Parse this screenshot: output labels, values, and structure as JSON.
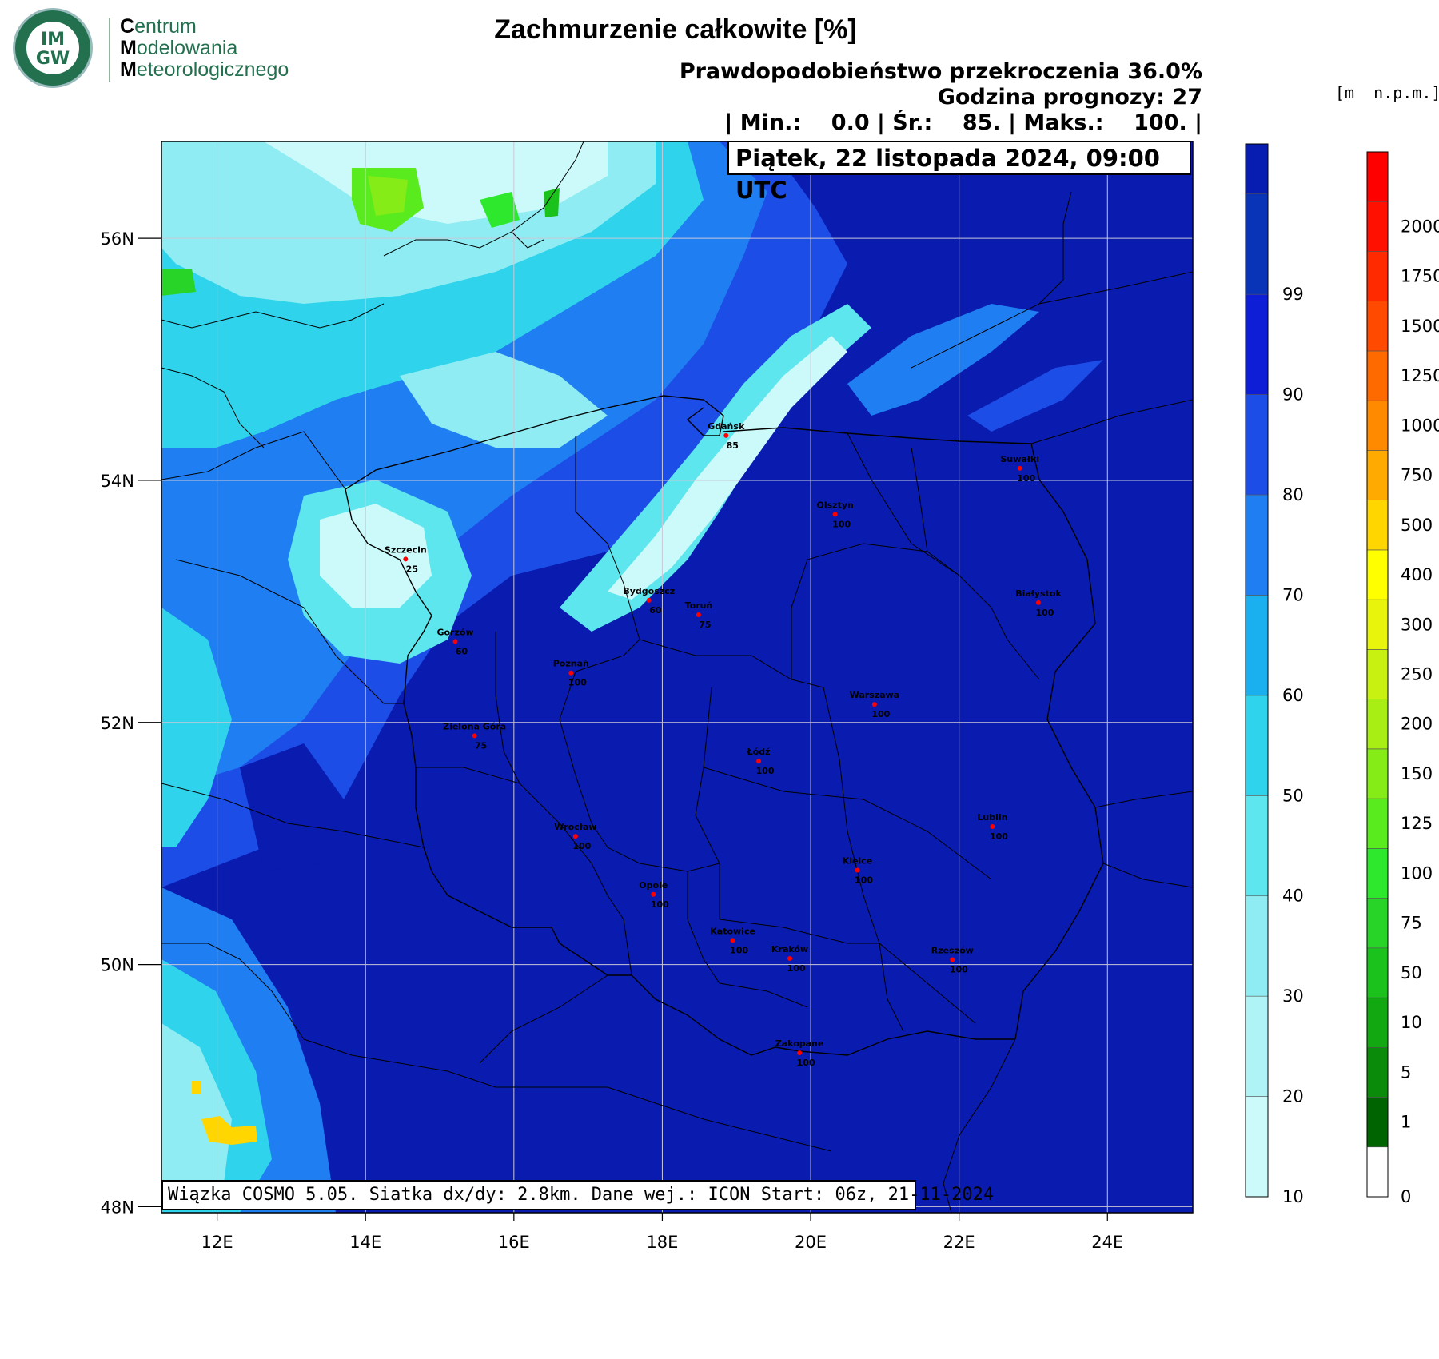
{
  "logo": {
    "circle_top": "IM",
    "circle_bottom": "GW",
    "line1_initial": "C",
    "line1_rest": "entrum",
    "line2_initial": "M",
    "line2_rest": "odelowania",
    "line3_initial": "M",
    "line3_rest": "eteorologicznego"
  },
  "header": {
    "title": "Zachmurzenie całkowite [%]",
    "probability": "Prawdopodobieństwo przekroczenia 36.0%",
    "forecast_hour": "Godzina prognozy: 27",
    "stats": "| Min.:    0.0 | Śr.:    85. | Maks.:    100. |"
  },
  "date_label": "Piątek, 22 listopada 2024, 09:00 UTC",
  "footer_note": "Wiązka COSMO 5.05. Siatka dx/dy: 2.8km. Dane wej.: ICON Start: 06z, 21-11-2024",
  "elevation_unit": "[m  n.p.m.]",
  "map": {
    "lon_labels": [
      "12E",
      "14E",
      "16E",
      "18E",
      "20E",
      "22E",
      "24E"
    ],
    "lon_values": [
      12,
      14,
      16,
      18,
      20,
      22,
      24
    ],
    "lat_labels": [
      "56N",
      "54N",
      "52N",
      "50N",
      "48N"
    ],
    "lat_values": [
      56,
      54,
      52,
      50,
      48
    ],
    "lon_range": [
      11.25,
      25.15
    ],
    "lat_range": [
      47.95,
      56.8
    ],
    "cities": [
      {
        "name": "Gdańsk",
        "value": "85",
        "lon": 18.86,
        "lat": 54.37
      },
      {
        "name": "Suwałki",
        "value": "100",
        "lon": 22.82,
        "lat": 54.1
      },
      {
        "name": "Olsztyn",
        "value": "100",
        "lon": 20.33,
        "lat": 53.72
      },
      {
        "name": "Szczecin",
        "value": "25",
        "lon": 14.54,
        "lat": 53.35
      },
      {
        "name": "Białystok",
        "value": "100",
        "lon": 23.07,
        "lat": 52.99
      },
      {
        "name": "Bydgoszcz",
        "value": "60",
        "lon": 17.82,
        "lat": 53.01
      },
      {
        "name": "Toruń",
        "value": "75",
        "lon": 18.49,
        "lat": 52.89
      },
      {
        "name": "Gorzów",
        "value": "60",
        "lon": 15.21,
        "lat": 52.67
      },
      {
        "name": "Poznań",
        "value": "100",
        "lon": 16.77,
        "lat": 52.41
      },
      {
        "name": "Warszawa",
        "value": "100",
        "lon": 20.86,
        "lat": 52.15
      },
      {
        "name": "Zielona Góra",
        "value": "75",
        "lon": 15.47,
        "lat": 51.89
      },
      {
        "name": "Łódź",
        "value": "100",
        "lon": 19.3,
        "lat": 51.68
      },
      {
        "name": "Lublin",
        "value": "100",
        "lon": 22.45,
        "lat": 51.14
      },
      {
        "name": "Wrocław",
        "value": "100",
        "lon": 16.83,
        "lat": 51.06
      },
      {
        "name": "Kielce",
        "value": "100",
        "lon": 20.63,
        "lat": 50.78
      },
      {
        "name": "Opole",
        "value": "100",
        "lon": 17.88,
        "lat": 50.58
      },
      {
        "name": "Katowice",
        "value": "100",
        "lon": 18.95,
        "lat": 50.2
      },
      {
        "name": "Kraków",
        "value": "100",
        "lon": 19.72,
        "lat": 50.05
      },
      {
        "name": "Rzeszów",
        "value": "100",
        "lon": 21.91,
        "lat": 50.04
      },
      {
        "name": "Zakopane",
        "value": "100",
        "lon": 19.85,
        "lat": 49.27
      }
    ]
  },
  "cloud_scale": {
    "labels": [
      "10",
      "20",
      "30",
      "40",
      "50",
      "60",
      "70",
      "80",
      "90",
      "99"
    ],
    "colors": [
      "#ccfafa",
      "#b0f3f6",
      "#8eecf2",
      "#5ee6ee",
      "#2fd4ec",
      "#1ab0f0",
      "#1f7ff2",
      "#1c4de6",
      "#0d1ed6",
      "#0a34b8",
      "#071cb0"
    ]
  },
  "elevation_scale": {
    "labels": [
      "0",
      "1",
      "5",
      "10",
      "50",
      "75",
      "100",
      "125",
      "150",
      "200",
      "250",
      "300",
      "400",
      "500",
      "750",
      "1000",
      "1250",
      "1500",
      "1750",
      "2000"
    ],
    "colors": [
      "#ffffff",
      "#006400",
      "#0a8c0a",
      "#12a812",
      "#1cc21c",
      "#28d428",
      "#2ee82e",
      "#5aeb1e",
      "#86ec18",
      "#a8ee14",
      "#c8f010",
      "#e8f40c",
      "#ffff00",
      "#ffd600",
      "#ffaa00",
      "#ff8a00",
      "#ff6a00",
      "#ff4a00",
      "#ff2a00",
      "#ff1000",
      "#ff0000"
    ]
  },
  "colors": {
    "land_base": "#0a1bb0",
    "cloud_dark": "#0a34b8",
    "grid": "#c8c8d8",
    "border": "#000000",
    "city_dot": "#ff0000"
  }
}
